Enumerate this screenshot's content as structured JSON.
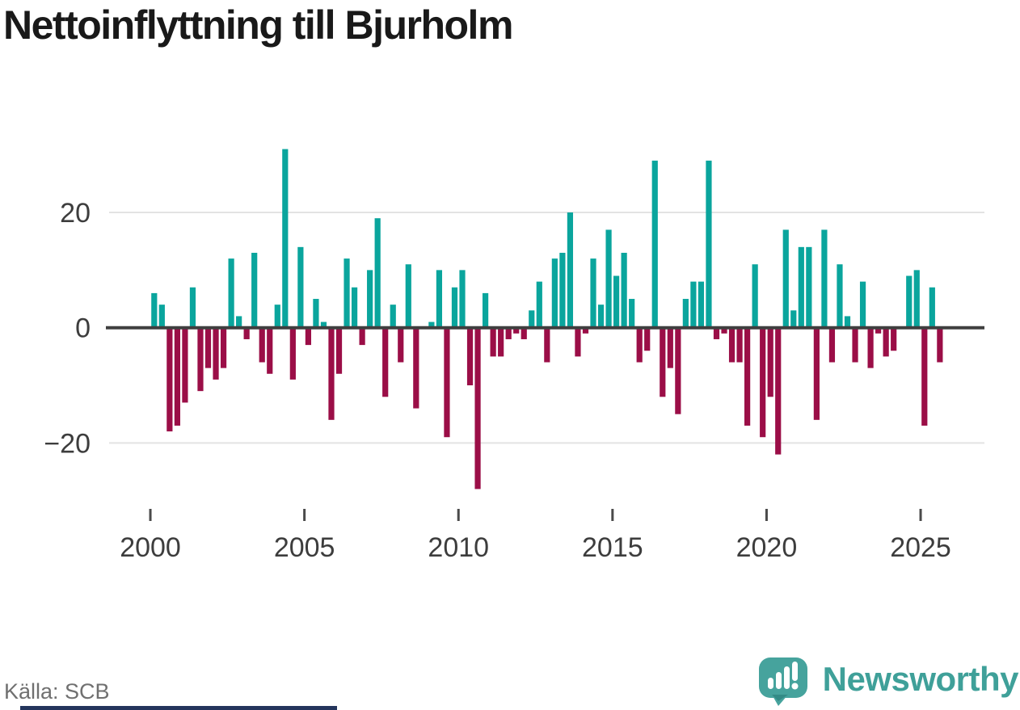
{
  "title": "Nettoinflyttning till Bjurholm",
  "source": {
    "text": "Källa: SCB"
  },
  "logo": {
    "text": "Newsworthy",
    "icon": "newsworthy-speech-bubble-chart-icon",
    "icon_color": "#46a39d",
    "text_color": "#3fa099"
  },
  "footer_bar": {
    "color": "#24355c"
  },
  "chart_data": {
    "type": "bar",
    "title": "Nettoinflyttning till Bjurholm",
    "period": "quarterly",
    "x_range": [
      "2000Q1",
      "2025Q3"
    ],
    "ylim": [
      -30,
      33
    ],
    "grid": true,
    "legend": false,
    "colors": {
      "positive": "#0aa59d",
      "negative": "#9b0e47",
      "zero_line": "#3f3f3f",
      "gridline": "#e3e3e3",
      "axis_text": "#3d3d3d"
    },
    "y_ticks": [
      {
        "label": "20",
        "value": 20
      },
      {
        "label": "0",
        "value": 0
      },
      {
        "label": "−20",
        "value": -20
      }
    ],
    "x_ticks": [
      {
        "label": "2000",
        "year": 2000
      },
      {
        "label": "2005",
        "year": 2005
      },
      {
        "label": "2010",
        "year": 2010
      },
      {
        "label": "2015",
        "year": 2015
      },
      {
        "label": "2020",
        "year": 2020
      },
      {
        "label": "2025",
        "year": 2025
      }
    ],
    "series": [
      {
        "year": 2000,
        "values": [
          6,
          4,
          -18,
          -17
        ]
      },
      {
        "year": 2001,
        "values": [
          -13,
          7,
          -11,
          -7
        ]
      },
      {
        "year": 2002,
        "values": [
          -9,
          -7,
          12,
          2
        ]
      },
      {
        "year": 2003,
        "values": [
          -2,
          13,
          -6,
          -8
        ]
      },
      {
        "year": 2004,
        "values": [
          4,
          31,
          -9,
          14
        ]
      },
      {
        "year": 2005,
        "values": [
          -3,
          5,
          1,
          -16
        ]
      },
      {
        "year": 2006,
        "values": [
          -8,
          12,
          7,
          -3
        ]
      },
      {
        "year": 2007,
        "values": [
          10,
          19,
          -12,
          4
        ]
      },
      {
        "year": 2008,
        "values": [
          -6,
          11,
          -14,
          0
        ]
      },
      {
        "year": 2009,
        "values": [
          1,
          10,
          -19,
          7
        ]
      },
      {
        "year": 2010,
        "values": [
          10,
          -10,
          -28,
          6
        ]
      },
      {
        "year": 2011,
        "values": [
          -5,
          -5,
          -2,
          -1
        ]
      },
      {
        "year": 2012,
        "values": [
          -2,
          3,
          8,
          -6
        ]
      },
      {
        "year": 2013,
        "values": [
          12,
          13,
          20,
          -5
        ]
      },
      {
        "year": 2014,
        "values": [
          -1,
          12,
          4,
          17
        ]
      },
      {
        "year": 2015,
        "values": [
          9,
          13,
          5,
          -6
        ]
      },
      {
        "year": 2016,
        "values": [
          -4,
          29,
          -12,
          -7
        ]
      },
      {
        "year": 2017,
        "values": [
          -15,
          5,
          8,
          8
        ]
      },
      {
        "year": 2018,
        "values": [
          29,
          -2,
          -1,
          -6
        ]
      },
      {
        "year": 2019,
        "values": [
          -6,
          -17,
          11,
          -19
        ]
      },
      {
        "year": 2020,
        "values": [
          -12,
          -22,
          17,
          3
        ]
      },
      {
        "year": 2021,
        "values": [
          14,
          14,
          -16,
          17
        ]
      },
      {
        "year": 2022,
        "values": [
          -6,
          11,
          2,
          -6
        ]
      },
      {
        "year": 2023,
        "values": [
          8,
          -7,
          -1,
          -5
        ]
      },
      {
        "year": 2024,
        "values": [
          -4,
          0,
          9,
          10
        ]
      },
      {
        "year": 2025,
        "values": [
          -17,
          7,
          -6
        ]
      }
    ]
  }
}
